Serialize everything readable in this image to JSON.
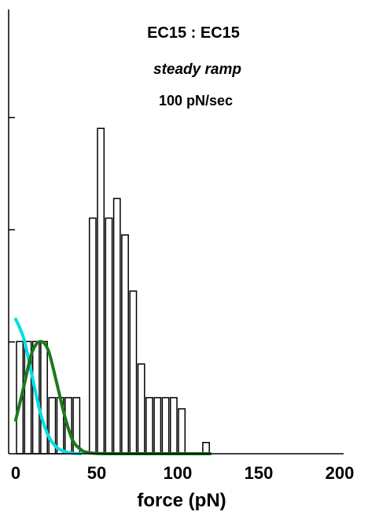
{
  "chart_data": {
    "type": "bar",
    "title": "EC15 : EC15",
    "subtitle": "steady ramp",
    "annotation": "100 pN/sec",
    "xlabel": "force (pN)",
    "ylabel": "",
    "xlim": [
      0,
      200
    ],
    "ylim": [
      0,
      7.5
    ],
    "xticks": [
      0,
      50,
      100,
      150,
      200
    ],
    "xtick_labels": [
      "0",
      "50",
      "100",
      "150",
      "200"
    ],
    "yticks": [
      2,
      4,
      6
    ],
    "bin_width": 5,
    "bar_fill": "#ffffff",
    "bar_stroke": "#000000",
    "bins": [
      {
        "start": 0,
        "end": 5,
        "count": 2
      },
      {
        "start": 5,
        "end": 10,
        "count": 2
      },
      {
        "start": 10,
        "end": 15,
        "count": 2
      },
      {
        "start": 15,
        "end": 20,
        "count": 2
      },
      {
        "start": 20,
        "end": 25,
        "count": 1
      },
      {
        "start": 25,
        "end": 30,
        "count": 1
      },
      {
        "start": 30,
        "end": 35,
        "count": 1
      },
      {
        "start": 35,
        "end": 40,
        "count": 1
      },
      {
        "start": 40,
        "end": 45,
        "count": 0
      },
      {
        "start": 45,
        "end": 50,
        "count": 4.2
      },
      {
        "start": 50,
        "end": 55,
        "count": 5.8
      },
      {
        "start": 55,
        "end": 60,
        "count": 4.2
      },
      {
        "start": 60,
        "end": 65,
        "count": 4.55
      },
      {
        "start": 65,
        "end": 70,
        "count": 3.9
      },
      {
        "start": 70,
        "end": 75,
        "count": 2.9
      },
      {
        "start": 75,
        "end": 80,
        "count": 1.6
      },
      {
        "start": 80,
        "end": 85,
        "count": 1
      },
      {
        "start": 85,
        "end": 90,
        "count": 1
      },
      {
        "start": 90,
        "end": 95,
        "count": 1
      },
      {
        "start": 95,
        "end": 100,
        "count": 1
      },
      {
        "start": 100,
        "end": 105,
        "count": 0.8
      },
      {
        "start": 105,
        "end": 110,
        "count": 0
      },
      {
        "start": 110,
        "end": 115,
        "count": 0
      },
      {
        "start": 115,
        "end": 120,
        "count": 0.2
      }
    ],
    "series": [
      {
        "type": "line",
        "color": "#00e0e0",
        "x": [
          0,
          5,
          10,
          15,
          20,
          25,
          30,
          35,
          40
        ],
        "y": [
          2.4,
          2.05,
          1.4,
          0.75,
          0.33,
          0.12,
          0.04,
          0.01,
          0
        ]
      },
      {
        "type": "line",
        "color": "#1a7a1a",
        "x": [
          0,
          5,
          10,
          15,
          20,
          25,
          30,
          35,
          40,
          45,
          60,
          120
        ],
        "y": [
          0.6,
          1.2,
          1.8,
          2.0,
          1.85,
          1.3,
          0.7,
          0.25,
          0.08,
          0.02,
          0,
          0
        ]
      }
    ]
  }
}
